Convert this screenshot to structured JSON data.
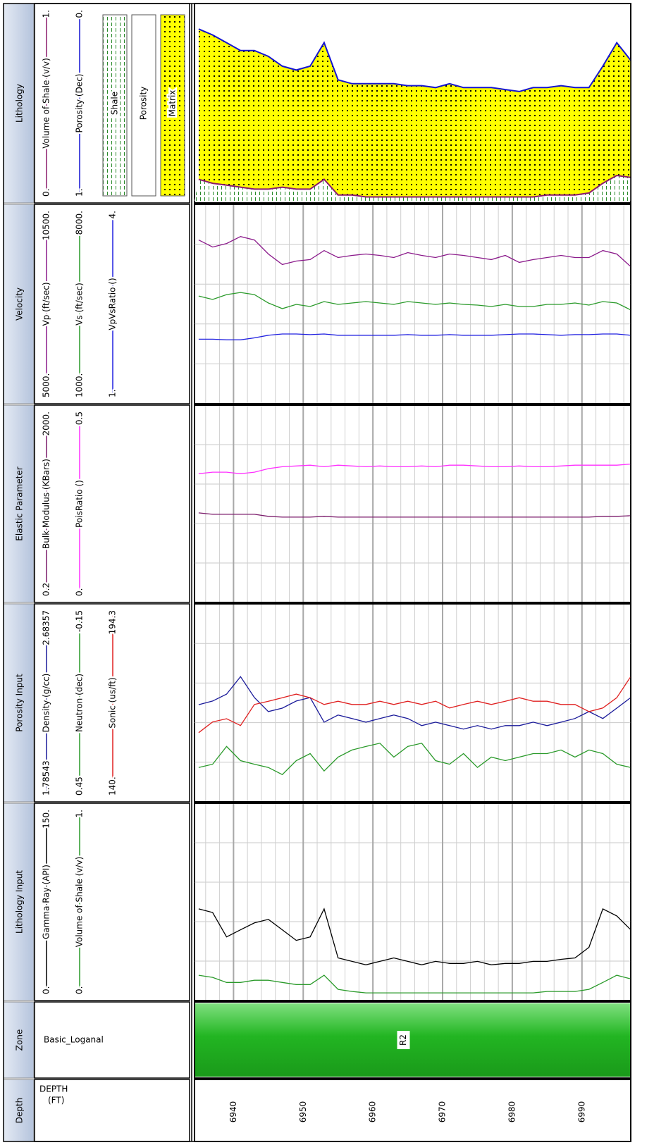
{
  "chart_data": {
    "type": "well-log",
    "x": [
      6935,
      6937,
      6939,
      6941,
      6943,
      6945,
      6947,
      6949,
      6951,
      6953,
      6955,
      6957,
      6959,
      6961,
      6963,
      6965,
      6967,
      6969,
      6971,
      6973,
      6975,
      6977,
      6979,
      6981,
      6983,
      6985,
      6987,
      6989,
      6991,
      6993,
      6995,
      6997
    ],
    "xlim": [
      6934.4,
      6997.0
    ],
    "xticks": [
      6940,
      6950,
      6960,
      6970,
      6980,
      6990
    ],
    "xminor": [
      6936,
      6938,
      6940,
      6942,
      6944,
      6946,
      6948,
      6950,
      6952,
      6954,
      6956,
      6958,
      6960,
      6962,
      6964,
      6966,
      6968,
      6970,
      6972,
      6974,
      6976,
      6978,
      6980,
      6982,
      6984,
      6986,
      6988,
      6990,
      6992,
      6994,
      6996
    ],
    "tracks": [
      {
        "type": "lithology",
        "title": "Lithology",
        "series": [
          {
            "name": "Volume of Shale (v/v)",
            "color": "#8b1a6b",
            "scale": [
              {
                "value": 0,
                "label": "0."
              },
              {
                "value": 1,
                "label": "1."
              }
            ],
            "values": [
              0.11,
              0.09,
              0.08,
              0.07,
              0.06,
              0.06,
              0.07,
              0.06,
              0.06,
              0.11,
              0.03,
              0.03,
              0.02,
              0.02,
              0.02,
              0.02,
              0.02,
              0.02,
              0.02,
              0.02,
              0.02,
              0.02,
              0.02,
              0.02,
              0.02,
              0.03,
              0.03,
              0.03,
              0.04,
              0.09,
              0.13,
              0.12
            ]
          },
          {
            "name": "Porosity (Dec)",
            "color": "#1414d2",
            "scale": [
              {
                "value": 1,
                "label": "1."
              },
              {
                "value": 0,
                "label": "0."
              }
            ],
            "values": [
              0.12,
              0.15,
              0.19,
              0.23,
              0.23,
              0.26,
              0.31,
              0.33,
              0.31,
              0.19,
              0.38,
              0.4,
              0.4,
              0.4,
              0.4,
              0.41,
              0.41,
              0.42,
              0.4,
              0.42,
              0.42,
              0.42,
              0.43,
              0.44,
              0.42,
              0.42,
              0.41,
              0.42,
              0.42,
              0.31,
              0.19,
              0.28
            ]
          }
        ],
        "fills": [
          {
            "name": "Shale",
            "color": "#2a8a2a"
          },
          {
            "name": "Porosity",
            "color": "#ffffff"
          },
          {
            "name": "Matrix",
            "color": "#ffff00"
          }
        ]
      },
      {
        "type": "curves",
        "title": "Velocity",
        "series": [
          {
            "name": "Vp (ft/sec)",
            "color": "#8b1a8b",
            "scale": [
              {
                "value": 5000,
                "label": "5000."
              },
              {
                "value": 10500,
                "label": "10500."
              }
            ],
            "values": [
              9554,
              9357,
              9455,
              9652,
              9554,
              9160,
              8864,
              8962,
              9002,
              9258,
              9061,
              9120,
              9160,
              9120,
              9061,
              9199,
              9120,
              9061,
              9160,
              9120,
              9061,
              9002,
              9120,
              8923,
              9002,
              9061,
              9120,
              9061,
              9061,
              9258,
              9160,
              8805
            ]
          },
          {
            "name": "Vs (ft/sec)",
            "color": "#2a9a2a",
            "scale": [
              {
                "value": 1000,
                "label": "1000."
              },
              {
                "value": 8000,
                "label": "8000."
              }
            ],
            "values": [
              4789,
              4663,
              4839,
              4914,
              4839,
              4538,
              4337,
              4488,
              4412,
              4588,
              4488,
              4538,
              4588,
              4538,
              4488,
              4588,
              4538,
              4488,
              4538,
              4488,
              4462,
              4412,
              4488,
              4412,
              4412,
              4488,
              4488,
              4538,
              4462,
              4588,
              4538,
              4287
            ]
          },
          {
            "name": "VpVsRatio ()",
            "color": "#2020e0",
            "scale": [
              {
                "value": 1,
                "label": "1."
              },
              {
                "value": 4,
                "label": "4."
              }
            ],
            "values": [
              1.96,
              1.96,
              1.95,
              1.95,
              1.98,
              2.02,
              2.04,
              2.04,
              2.03,
              2.04,
              2.02,
              2.02,
              2.02,
              2.02,
              2.02,
              2.03,
              2.02,
              2.02,
              2.03,
              2.02,
              2.02,
              2.02,
              2.03,
              2.04,
              2.04,
              2.03,
              2.02,
              2.03,
              2.03,
              2.04,
              2.04,
              2.02
            ]
          }
        ]
      },
      {
        "type": "curves",
        "title": "Elastic Parameter",
        "series": [
          {
            "name": "Bulk Modulus (KBars)",
            "color": "#7a1a6a",
            "scale": [
              0.2,
              {
                "value": 2000,
                "label": "2000."
              }
            ],
            "values": [
              906,
              891,
              891,
              891,
              891,
              870,
              862,
              862,
              862,
              870,
              862,
              862,
              862,
              862,
              862,
              862,
              862,
              862,
              862,
              862,
              862,
              862,
              862,
              862,
              862,
              862,
              862,
              862,
              862,
              870,
              870,
              877
            ]
          },
          {
            "name": "PoisRatio ()",
            "color": "#ff30ff",
            "scale": [
              {
                "value": 0,
                "label": "0."
              },
              0.5
            ],
            "values": [
              0.328,
              0.332,
              0.332,
              0.328,
              0.332,
              0.341,
              0.346,
              0.348,
              0.35,
              0.346,
              0.35,
              0.348,
              0.346,
              0.348,
              0.346,
              0.346,
              0.348,
              0.346,
              0.35,
              0.35,
              0.348,
              0.346,
              0.346,
              0.348,
              0.346,
              0.346,
              0.348,
              0.35,
              0.35,
              0.35,
              0.35,
              0.353
            ]
          }
        ]
      },
      {
        "type": "curves",
        "title": "Porosity Input",
        "series": [
          {
            "name": "Density (g/cc)",
            "color": "#1a1a9a",
            "scale": [
              1.78543,
              2.68357
            ],
            "values": [
              2.226,
              2.243,
              2.275,
              2.356,
              2.259,
              2.194,
              2.21,
              2.243,
              2.259,
              2.145,
              2.178,
              2.162,
              2.145,
              2.162,
              2.178,
              2.162,
              2.129,
              2.145,
              2.129,
              2.113,
              2.129,
              2.113,
              2.129,
              2.129,
              2.145,
              2.129,
              2.145,
              2.162,
              2.194,
              2.162,
              2.21,
              2.259
            ]
          },
          {
            "name": "Neutron (dec)",
            "color": "#2a9a2a",
            "scale": [
              0.45,
              -0.15
            ],
            "values": [
              0.35,
              0.34,
              0.285,
              0.329,
              0.34,
              0.35,
              0.372,
              0.329,
              0.307,
              0.361,
              0.318,
              0.296,
              0.285,
              0.275,
              0.318,
              0.285,
              0.275,
              0.329,
              0.34,
              0.307,
              0.35,
              0.318,
              0.329,
              0.318,
              0.307,
              0.307,
              0.296,
              0.318,
              0.296,
              0.307,
              0.34,
              0.35
            ]
          },
          {
            "name": "Sonic (us/ft)",
            "color": "#e02020",
            "scale": [
              {
                "value": 140,
                "label": "140."
              },
              194.3
            ],
            "values": [
              158.8,
              161.8,
              162.7,
              160.8,
              166.7,
              167.6,
              168.6,
              169.6,
              168.6,
              166.7,
              167.6,
              166.7,
              166.7,
              167.6,
              166.7,
              167.6,
              166.7,
              167.6,
              165.7,
              166.7,
              167.6,
              166.7,
              167.6,
              168.6,
              167.6,
              167.6,
              166.7,
              166.7,
              164.7,
              165.7,
              168.6,
              174.5
            ]
          }
        ]
      },
      {
        "type": "curves",
        "title": "Lithology Input",
        "series": [
          {
            "name": "Gamma Ray (API)",
            "color": "#000000",
            "scale": [
              {
                "value": 0,
                "label": "0."
              },
              {
                "value": 150,
                "label": "150."
              }
            ],
            "values": [
              69.6,
              66.8,
              47.8,
              53.3,
              58.7,
              61.4,
              53.3,
              45.1,
              47.8,
              69.6,
              31.5,
              28.8,
              26.1,
              28.8,
              31.5,
              28.8,
              26.1,
              28.8,
              27.2,
              27.2,
              28.8,
              26.1,
              27.2,
              27.2,
              28.8,
              28.8,
              30.4,
              31.5,
              39.7,
              69.6,
              64.1,
              53.3
            ]
          },
          {
            "name": "Volume of Shale (v/v)",
            "color": "#2a9a2a",
            "scale": [
              {
                "value": 0,
                "label": "0."
              },
              {
                "value": 1,
                "label": "1."
              }
            ],
            "values": [
              0.12,
              0.109,
              0.083,
              0.083,
              0.094,
              0.094,
              0.083,
              0.072,
              0.072,
              0.12,
              0.047,
              0.036,
              0.029,
              0.029,
              0.029,
              0.029,
              0.029,
              0.029,
              0.029,
              0.029,
              0.029,
              0.029,
              0.029,
              0.029,
              0.029,
              0.036,
              0.036,
              0.036,
              0.047,
              0.083,
              0.12,
              0.101
            ]
          }
        ]
      },
      {
        "type": "zone",
        "title": "Zone",
        "header": "Basic_Loganal",
        "zones": [
          "R2"
        ]
      },
      {
        "type": "depth",
        "title": "Depth",
        "header": [
          "DEPTH",
          "(FT)"
        ]
      }
    ]
  }
}
